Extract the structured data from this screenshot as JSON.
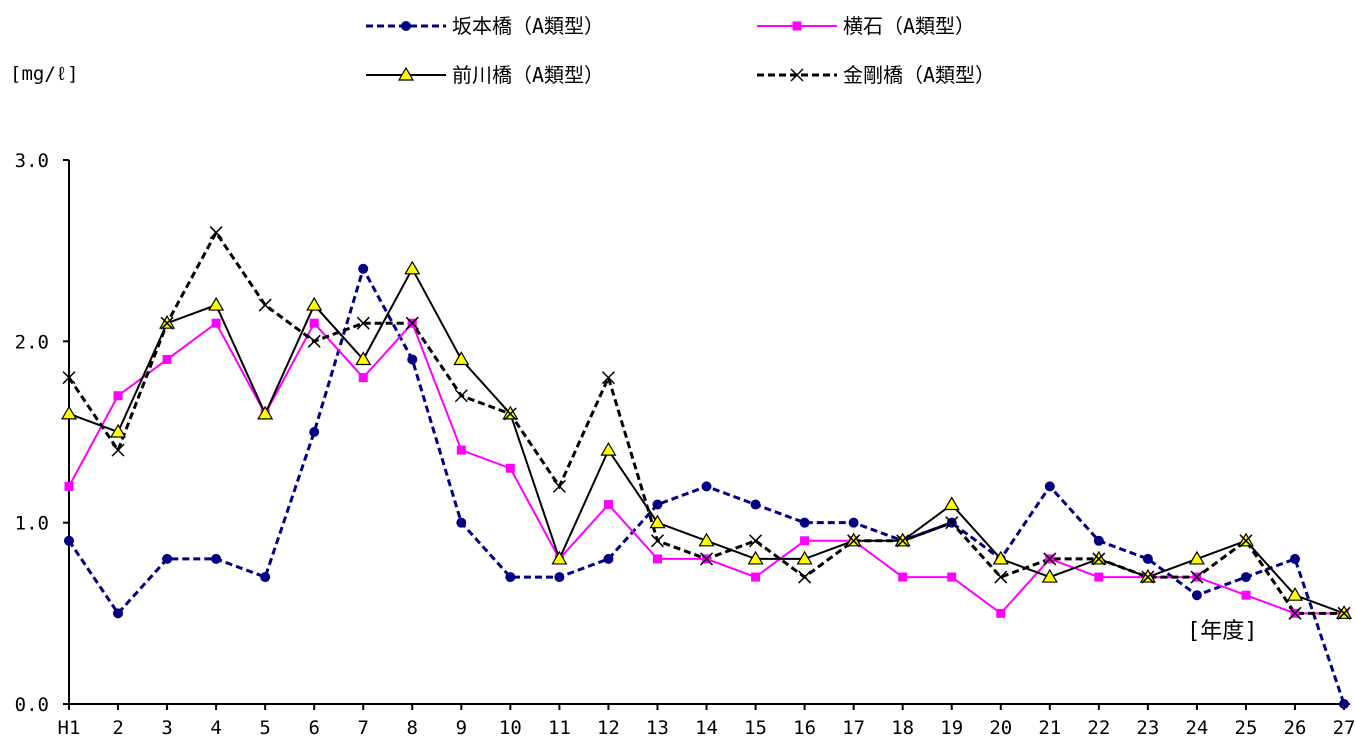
{
  "chart_data": {
    "type": "line",
    "y_unit_label": "[mg/ℓ]",
    "x_unit_label": "[年度]",
    "categories": [
      "H1",
      "2",
      "3",
      "4",
      "5",
      "6",
      "7",
      "8",
      "9",
      "10",
      "11",
      "12",
      "13",
      "14",
      "15",
      "16",
      "17",
      "18",
      "19",
      "20",
      "21",
      "22",
      "23",
      "24",
      "25",
      "26",
      "27"
    ],
    "y_ticks": [
      "0.0",
      "1.0",
      "2.0",
      "3.0"
    ],
    "ylim": [
      0,
      3.0
    ],
    "legend_position": "top",
    "grid": false,
    "series": [
      {
        "name": "坂本橋（A類型）",
        "color": "#000080",
        "line_style": "dashed",
        "marker": "circle",
        "values": [
          0.9,
          0.5,
          0.8,
          0.8,
          0.7,
          1.5,
          2.4,
          1.9,
          1.0,
          0.7,
          0.7,
          0.8,
          1.1,
          1.2,
          1.1,
          1.0,
          1.0,
          0.9,
          1.0,
          0.8,
          1.2,
          0.9,
          0.8,
          0.6,
          0.7,
          0.8,
          0.0
        ]
      },
      {
        "name": "横石（A類型）",
        "color": "#ff00ff",
        "line_style": "solid",
        "marker": "square",
        "values": [
          1.2,
          1.7,
          1.9,
          2.1,
          1.6,
          2.1,
          1.8,
          2.1,
          1.4,
          1.3,
          0.8,
          1.1,
          0.8,
          0.8,
          0.7,
          0.9,
          0.9,
          0.7,
          0.7,
          0.5,
          0.8,
          0.7,
          0.7,
          0.7,
          0.6,
          0.5,
          0.5
        ]
      },
      {
        "name": "前川橋（A類型）",
        "color": "#000000",
        "line_style": "solid",
        "marker": "triangle",
        "values": [
          1.6,
          1.5,
          2.1,
          2.2,
          1.6,
          2.2,
          1.9,
          2.4,
          1.9,
          1.6,
          0.8,
          1.4,
          1.0,
          0.9,
          0.8,
          0.8,
          0.9,
          0.9,
          1.1,
          0.8,
          0.7,
          0.8,
          0.7,
          0.8,
          0.9,
          0.6,
          0.5
        ]
      },
      {
        "name": "金剛橋（A類型）",
        "color": "#000000",
        "line_style": "dashed",
        "marker": "x",
        "values": [
          1.8,
          1.4,
          2.1,
          2.6,
          2.2,
          2.0,
          2.1,
          2.1,
          1.7,
          1.6,
          1.2,
          1.8,
          0.9,
          0.8,
          0.9,
          0.7,
          0.9,
          0.9,
          1.0,
          0.7,
          0.8,
          0.8,
          0.7,
          0.7,
          0.9,
          0.5,
          0.5
        ]
      }
    ]
  }
}
